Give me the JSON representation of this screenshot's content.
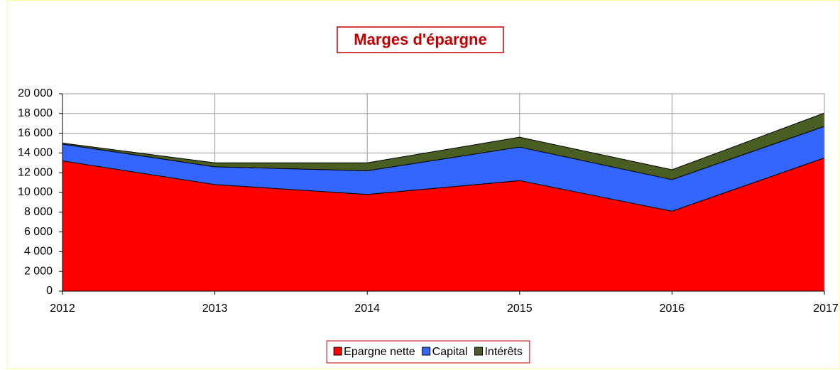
{
  "chart_data": {
    "type": "stacked_area",
    "title": "Marges d'épargne",
    "categories": [
      "2012",
      "2013",
      "2014",
      "2015",
      "2016",
      "2017"
    ],
    "series": [
      {
        "name": "Epargne nette",
        "color": "#ff0000",
        "values": [
          13200,
          10800,
          9800,
          11200,
          8100,
          13500
        ]
      },
      {
        "name": "Capital",
        "color": "#3366ff",
        "values": [
          1700,
          1800,
          2400,
          3400,
          3200,
          3200
        ]
      },
      {
        "name": "Intérêts",
        "color": "#4a5e23",
        "values": [
          100,
          400,
          800,
          1000,
          1000,
          1350
        ]
      }
    ],
    "ylim": [
      0,
      20000
    ],
    "yticks": [
      0,
      {
        "value": 2000,
        "label": "2 000"
      },
      {
        "value": 4000,
        "label": "4 000"
      },
      {
        "value": 6000,
        "label": "6 000"
      },
      {
        "value": 8000,
        "label": "8 000"
      },
      {
        "value": 10000,
        "label": "10 000"
      },
      {
        "value": 12000,
        "label": "12 000"
      },
      {
        "value": 14000,
        "label": "14 000"
      },
      {
        "value": 16000,
        "label": "16 000"
      },
      {
        "value": 18000,
        "label": "18 000"
      },
      {
        "value": 20000,
        "label": "20 000"
      }
    ],
    "grid": true,
    "legend": "bottom"
  }
}
